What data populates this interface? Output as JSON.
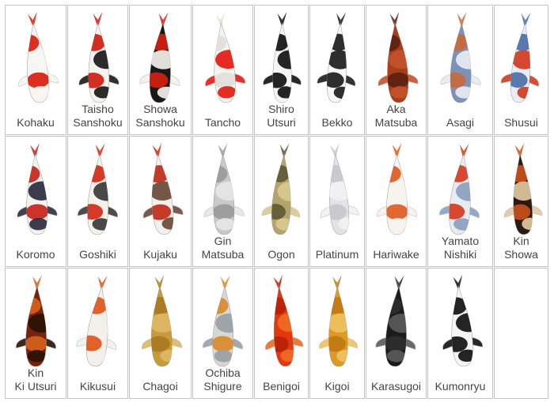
{
  "koi": [
    {
      "label": "Kohaku",
      "icon": "koi-fish-icon",
      "palette": [
        "#f7f5f2",
        "#d81e0e",
        "#f7f5f2"
      ]
    },
    {
      "label": "Taisho\nSanshoku",
      "icon": "koi-fish-icon",
      "palette": [
        "#f5f3ef",
        "#cf1d10",
        "#1a1a1a"
      ]
    },
    {
      "label": "Showa\nSanshoku",
      "icon": "koi-fish-icon",
      "palette": [
        "#181818",
        "#d2200f",
        "#f3f1ed"
      ]
    },
    {
      "label": "Tancho",
      "icon": "koi-fish-icon",
      "palette": [
        "#f4f3f0",
        "#e0e0dc",
        "#e31b10"
      ]
    },
    {
      "label": "Shiro\nUtsuri",
      "icon": "koi-fish-icon",
      "palette": [
        "#f5f5f5",
        "#111111",
        "#111111"
      ]
    },
    {
      "label": "Bekko",
      "icon": "koi-fish-icon",
      "palette": [
        "#f7f7f7",
        "#1c1c1c",
        "#1c1c1c"
      ]
    },
    {
      "label": "Aka\nMatsuba",
      "icon": "koi-fish-icon",
      "palette": [
        "#a83e1c",
        "#5e2010",
        "#c4532b"
      ]
    },
    {
      "label": "Asagi",
      "icon": "koi-fish-icon",
      "palette": [
        "#7c92b8",
        "#c96a3c",
        "#e8ebf2"
      ]
    },
    {
      "label": "Shusui",
      "icon": "koi-fish-icon",
      "palette": [
        "#e9eef6",
        "#4a6fa8",
        "#cf3b20"
      ]
    },
    {
      "label": "Koromo",
      "icon": "koi-fish-icon",
      "palette": [
        "#f4f2ef",
        "#c8231a",
        "#2c2c40"
      ]
    },
    {
      "label": "Goshiki",
      "icon": "koi-fish-icon",
      "palette": [
        "#f4f0ea",
        "#d12a16",
        "#3a3a3a"
      ]
    },
    {
      "label": "Kujaku",
      "icon": "koi-fish-icon",
      "palette": [
        "#f3f0ec",
        "#c22a17",
        "#6a4a3a"
      ]
    },
    {
      "label": "Gin\nMatsuba",
      "icon": "koi-fish-icon",
      "palette": [
        "#c9c9c9",
        "#9a9a9a",
        "#e6e6e6"
      ]
    },
    {
      "label": "Ogon",
      "icon": "koi-fish-icon",
      "palette": [
        "#b6a36c",
        "#5d5a36",
        "#d8c98e"
      ]
    },
    {
      "label": "Platinum",
      "icon": "koi-fish-icon",
      "palette": [
        "#e3e3e6",
        "#c8c8cc",
        "#f2f2f4"
      ]
    },
    {
      "label": "Hariwake",
      "icon": "koi-fish-icon",
      "palette": [
        "#f6f3ef",
        "#e05a1e",
        "#f6f3ef"
      ]
    },
    {
      "label": "Yamato\nNishiki",
      "icon": "koi-fish-icon",
      "palette": [
        "#e8ecf2",
        "#d43a1e",
        "#8aa0c0"
      ]
    },
    {
      "label": "Kin\nShowa",
      "icon": "koi-fish-icon",
      "palette": [
        "#2a1a10",
        "#c8501a",
        "#e0c7a0"
      ]
    },
    {
      "label": "Kin\nKi Utsuri",
      "icon": "koi-fish-icon",
      "palette": [
        "#7a2208",
        "#d4611c",
        "#2a1206"
      ]
    },
    {
      "label": "Kikusui",
      "icon": "koi-fish-icon",
      "palette": [
        "#f3efe9",
        "#e2541a",
        "#f3efe9"
      ]
    },
    {
      "label": "Chagoi",
      "icon": "koi-fish-icon",
      "palette": [
        "#c89a3a",
        "#a97a22",
        "#dcb765"
      ]
    },
    {
      "label": "Ochiba\nShigure",
      "icon": "koi-fish-icon",
      "palette": [
        "#d8d8d2",
        "#d98a2a",
        "#9aa0a6"
      ]
    },
    {
      "label": "Benigoi",
      "icon": "koi-fish-icon",
      "palette": [
        "#e2380f",
        "#b92108",
        "#ef6a22"
      ]
    },
    {
      "label": "Kigoi",
      "icon": "koi-fish-icon",
      "palette": [
        "#dd9a25",
        "#c07a12",
        "#eec160"
      ]
    },
    {
      "label": "Karasugoi",
      "icon": "koi-fish-icon",
      "palette": [
        "#1b1b1b",
        "#2e2e2e",
        "#5a5a5a"
      ]
    },
    {
      "label": "Kumonryu",
      "icon": "koi-fish-icon",
      "palette": [
        "#f4f4f4",
        "#111111",
        "#111111"
      ]
    }
  ]
}
